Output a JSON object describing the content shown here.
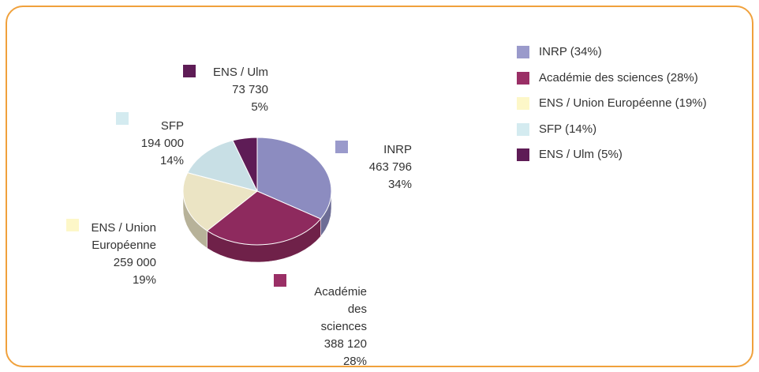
{
  "chart_data": {
    "type": "pie",
    "categories": [
      "INRP",
      "Académie des sciences",
      "ENS / Union Européenne",
      "SFP",
      "ENS / Ulm"
    ],
    "values": [
      463796,
      388120,
      259000,
      194000,
      73730
    ],
    "value_labels": [
      "463 796",
      "388 120",
      "259 000",
      "194 000",
      "73 730"
    ],
    "percents": [
      34,
      28,
      19,
      14,
      5
    ],
    "percent_labels": [
      "34%",
      "28%",
      "19%",
      "14%",
      "5%"
    ],
    "colors": [
      "#8c8cc0",
      "#8e2a5e",
      "#ebe4c4",
      "#c8dfe5",
      "#5e1c56"
    ],
    "legend_colors": [
      "#9a9acb",
      "#9a2f66",
      "#fdf7c8",
      "#d4ebf0",
      "#5e1c56"
    ],
    "legend": [
      "INRP (34%)",
      "Académie des sciences (28%)",
      "ENS / Union Européenne (19%)",
      "SFP (14%)",
      "ENS / Ulm (5%)"
    ]
  }
}
